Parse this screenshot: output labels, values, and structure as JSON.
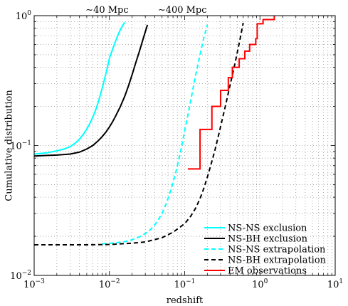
{
  "chart_data": {
    "type": "line",
    "title": "",
    "xlabel": "redshift",
    "ylabel": "Cumulative distribution",
    "xscale": "log",
    "yscale": "log",
    "xlim": [
      0.001,
      10
    ],
    "ylim": [
      0.01,
      1
    ],
    "grid": true,
    "legend_position": "bottom-right",
    "x_ticks": [
      {
        "value": 0.001,
        "base": "10",
        "exp": "−3"
      },
      {
        "value": 0.01,
        "base": "10",
        "exp": "−2"
      },
      {
        "value": 0.1,
        "base": "10",
        "exp": "−1"
      },
      {
        "value": 1,
        "base": "10",
        "exp": "0"
      },
      {
        "value": 10,
        "base": "10",
        "exp": "1"
      }
    ],
    "y_ticks": [
      {
        "value": 0.01,
        "base": "10",
        "exp": "−2"
      },
      {
        "value": 0.1,
        "base": "10",
        "exp": "−1"
      },
      {
        "value": 1,
        "base": "10",
        "exp": "0"
      }
    ],
    "annotations": [
      {
        "text": "∼40 Mpc",
        "x": 0.0093
      },
      {
        "text": "∼400 Mpc",
        "x": 0.093
      }
    ],
    "series": [
      {
        "name": "NS-NS exclusion",
        "color": "#00ffff",
        "style": "solid",
        "points": [
          [
            0.001,
            0.086
          ],
          [
            0.0015,
            0.088
          ],
          [
            0.002,
            0.091
          ],
          [
            0.0025,
            0.094
          ],
          [
            0.003,
            0.098
          ],
          [
            0.0035,
            0.104
          ],
          [
            0.004,
            0.112
          ],
          [
            0.0045,
            0.122
          ],
          [
            0.005,
            0.134
          ],
          [
            0.0055,
            0.148
          ],
          [
            0.006,
            0.165
          ],
          [
            0.0065,
            0.185
          ],
          [
            0.007,
            0.21
          ],
          [
            0.0075,
            0.24
          ],
          [
            0.008,
            0.275
          ],
          [
            0.0085,
            0.315
          ],
          [
            0.009,
            0.36
          ],
          [
            0.0095,
            0.41
          ],
          [
            0.01,
            0.47
          ],
          [
            0.011,
            0.55
          ],
          [
            0.012,
            0.63
          ],
          [
            0.013,
            0.71
          ],
          [
            0.014,
            0.78
          ],
          [
            0.015,
            0.84
          ],
          [
            0.016,
            0.89
          ]
        ]
      },
      {
        "name": "NS-BH exclusion",
        "color": "#000000",
        "style": "solid",
        "points": [
          [
            0.001,
            0.083
          ],
          [
            0.0015,
            0.084
          ],
          [
            0.002,
            0.0845
          ],
          [
            0.003,
            0.086
          ],
          [
            0.004,
            0.089
          ],
          [
            0.005,
            0.094
          ],
          [
            0.006,
            0.1
          ],
          [
            0.007,
            0.108
          ],
          [
            0.008,
            0.117
          ],
          [
            0.009,
            0.127
          ],
          [
            0.01,
            0.139
          ],
          [
            0.011,
            0.152
          ],
          [
            0.012,
            0.167
          ],
          [
            0.014,
            0.2
          ],
          [
            0.016,
            0.24
          ],
          [
            0.018,
            0.29
          ],
          [
            0.02,
            0.35
          ],
          [
            0.022,
            0.42
          ],
          [
            0.025,
            0.53
          ],
          [
            0.028,
            0.66
          ],
          [
            0.031,
            0.8
          ],
          [
            0.032,
            0.85
          ]
        ]
      },
      {
        "name": "NS-NS extrapolation",
        "color": "#00ffff",
        "style": "dashed",
        "points": [
          [
            0.008,
            0.0175
          ],
          [
            0.012,
            0.0178
          ],
          [
            0.016,
            0.0182
          ],
          [
            0.02,
            0.0188
          ],
          [
            0.025,
            0.0198
          ],
          [
            0.03,
            0.021
          ],
          [
            0.035,
            0.0225
          ],
          [
            0.04,
            0.0245
          ],
          [
            0.045,
            0.027
          ],
          [
            0.05,
            0.03
          ],
          [
            0.055,
            0.034
          ],
          [
            0.06,
            0.039
          ],
          [
            0.065,
            0.045
          ],
          [
            0.07,
            0.052
          ],
          [
            0.075,
            0.06
          ],
          [
            0.08,
            0.07
          ],
          [
            0.09,
            0.095
          ],
          [
            0.1,
            0.13
          ],
          [
            0.11,
            0.17
          ],
          [
            0.12,
            0.22
          ],
          [
            0.13,
            0.28
          ],
          [
            0.14,
            0.35
          ],
          [
            0.16,
            0.5
          ],
          [
            0.18,
            0.68
          ],
          [
            0.2,
            0.85
          ]
        ]
      },
      {
        "name": "NS-BH extrapolation",
        "color": "#000000",
        "style": "dashed",
        "points": [
          [
            0.001,
            0.0172
          ],
          [
            0.005,
            0.0172
          ],
          [
            0.01,
            0.0173
          ],
          [
            0.02,
            0.0177
          ],
          [
            0.03,
            0.0181
          ],
          [
            0.05,
            0.0195
          ],
          [
            0.07,
            0.0215
          ],
          [
            0.1,
            0.025
          ],
          [
            0.12,
            0.0285
          ],
          [
            0.14,
            0.033
          ],
          [
            0.16,
            0.039
          ],
          [
            0.18,
            0.047
          ],
          [
            0.2,
            0.057
          ],
          [
            0.22,
            0.069
          ],
          [
            0.25,
            0.09
          ],
          [
            0.28,
            0.118
          ],
          [
            0.3,
            0.14
          ],
          [
            0.35,
            0.205
          ],
          [
            0.4,
            0.29
          ],
          [
            0.45,
            0.39
          ],
          [
            0.5,
            0.52
          ],
          [
            0.55,
            0.68
          ],
          [
            0.58,
            0.8
          ],
          [
            0.6,
            0.88
          ]
        ]
      },
      {
        "name": "EM observations",
        "color": "#ff0000",
        "style": "step",
        "points": [
          [
            0.11,
            0.066
          ],
          [
            0.16,
            0.066
          ],
          [
            0.16,
            0.133
          ],
          [
            0.23,
            0.133
          ],
          [
            0.23,
            0.2
          ],
          [
            0.3,
            0.2
          ],
          [
            0.3,
            0.266
          ],
          [
            0.38,
            0.266
          ],
          [
            0.38,
            0.333
          ],
          [
            0.43,
            0.333
          ],
          [
            0.43,
            0.4
          ],
          [
            0.53,
            0.4
          ],
          [
            0.53,
            0.466
          ],
          [
            0.63,
            0.466
          ],
          [
            0.63,
            0.533
          ],
          [
            0.73,
            0.533
          ],
          [
            0.73,
            0.6
          ],
          [
            0.88,
            0.6
          ],
          [
            0.88,
            0.666
          ],
          [
            0.92,
            0.666
          ],
          [
            0.92,
            0.866
          ],
          [
            1.1,
            0.866
          ],
          [
            1.1,
            0.933
          ],
          [
            1.55,
            0.933
          ],
          [
            1.55,
            1.0
          ]
        ]
      }
    ]
  }
}
